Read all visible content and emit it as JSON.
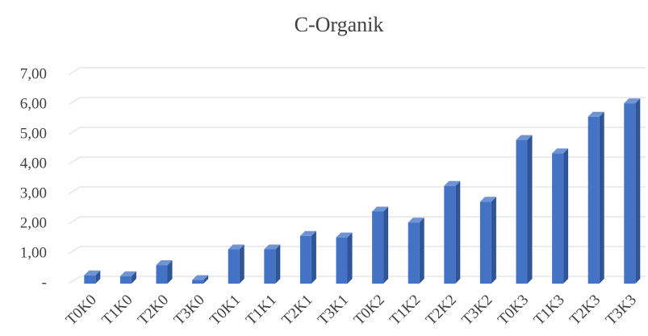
{
  "chart_data": {
    "type": "bar3d",
    "title": "C-Organik",
    "categories": [
      "T0K0",
      "T1K0",
      "T2K0",
      "T3K0",
      "T0K1",
      "T1K1",
      "T2K1",
      "T3K1",
      "T0K2",
      "T1K2",
      "T2K2",
      "T3K2",
      "T0K3",
      "T1K3",
      "T2K3",
      "T3K3"
    ],
    "values": [
      0.28,
      0.25,
      0.62,
      0.12,
      1.15,
      1.15,
      1.6,
      1.55,
      2.42,
      2.05,
      3.28,
      2.75,
      4.82,
      4.37,
      5.6,
      6.05
    ],
    "color": "#4472c4",
    "ylim": [
      0,
      7
    ],
    "yticks": [
      {
        "value": 0,
        "label": "-"
      },
      {
        "value": 1,
        "label": "1,00"
      },
      {
        "value": 2,
        "label": "2,00"
      },
      {
        "value": 3,
        "label": "3,00"
      },
      {
        "value": 4,
        "label": "4,00"
      },
      {
        "value": 5,
        "label": "5,00"
      },
      {
        "value": 6,
        "label": "6,00"
      },
      {
        "value": 7,
        "label": "7,00"
      }
    ],
    "grid": true
  }
}
